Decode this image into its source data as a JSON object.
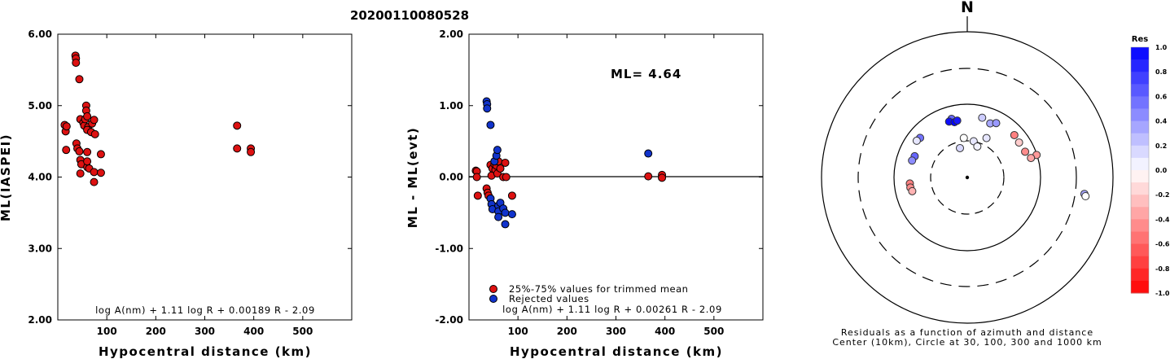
{
  "title": "20200110080528",
  "chart_data": [
    {
      "type": "scatter",
      "title": "",
      "xlabel": "Hypocentral distance (km)",
      "ylabel": "ML(IASPEI)",
      "xlim": [
        0,
        600
      ],
      "ylim": [
        2.0,
        6.0
      ],
      "x_ticks": [
        "100",
        "200",
        "300",
        "400",
        "500"
      ],
      "y_ticks": [
        "2.00",
        "3.00",
        "4.00",
        "5.00",
        "6.00"
      ],
      "formula": "log A(nm) + 1.11 log R + 0.00189 R - 2.09",
      "marker_color": "#dd1111",
      "points": [
        [
          14,
          4.73
        ],
        [
          16,
          4.64
        ],
        [
          18,
          4.71
        ],
        [
          17,
          4.38
        ],
        [
          36,
          5.7
        ],
        [
          37,
          5.66
        ],
        [
          37,
          5.6
        ],
        [
          38,
          4.47
        ],
        [
          40,
          4.4
        ],
        [
          44,
          5.37
        ],
        [
          46,
          4.81
        ],
        [
          44,
          4.36
        ],
        [
          46,
          4.24
        ],
        [
          46,
          4.05
        ],
        [
          48,
          4.18
        ],
        [
          52,
          4.76
        ],
        [
          54,
          4.72
        ],
        [
          56,
          4.81
        ],
        [
          58,
          5.0
        ],
        [
          58,
          4.93
        ],
        [
          60,
          4.85
        ],
        [
          62,
          4.7
        ],
        [
          60,
          4.66
        ],
        [
          60,
          4.35
        ],
        [
          60,
          4.14
        ],
        [
          60,
          4.22
        ],
        [
          64,
          4.12
        ],
        [
          68,
          4.63
        ],
        [
          70,
          4.75
        ],
        [
          74,
          4.8
        ],
        [
          76,
          4.6
        ],
        [
          74,
          4.07
        ],
        [
          74,
          3.93
        ],
        [
          88,
          4.32
        ],
        [
          88,
          4.06
        ],
        [
          366,
          4.72
        ],
        [
          366,
          4.4
        ],
        [
          394,
          4.4
        ],
        [
          394,
          4.35
        ]
      ]
    },
    {
      "type": "scatter",
      "title": "",
      "xlabel": "Hypocentral distance (km)",
      "ylabel": "ML - ML(evt)",
      "xlim": [
        0,
        600
      ],
      "ylim": [
        -2.0,
        2.0
      ],
      "x_ticks": [
        "100",
        "200",
        "300",
        "400",
        "500"
      ],
      "y_ticks": [
        "-2.00",
        "-1.00",
        "0.00",
        "1.00",
        "2.00"
      ],
      "ml_text": "ML= 4.64",
      "formula": "log A(nm) + 1.11 log R + 0.00261 R - 2.09",
      "legend": [
        {
          "label": "25%-75% values for trimmed mean",
          "color": "#dd1111"
        },
        {
          "label": "Rejected values",
          "color": "#1133cc"
        }
      ],
      "series": [
        {
          "name": "25%-75% values for trimmed mean",
          "color": "#dd1111",
          "points": [
            [
              14,
              0.09
            ],
            [
              16,
              0.08
            ],
            [
              16,
              0.0
            ],
            [
              18,
              -0.26
            ],
            [
              36,
              -0.16
            ],
            [
              38,
              -0.22
            ],
            [
              40,
              -0.26
            ],
            [
              44,
              0.17
            ],
            [
              46,
              0.02
            ],
            [
              48,
              0.12
            ],
            [
              52,
              0.18
            ],
            [
              54,
              0.1
            ],
            [
              56,
              0.16
            ],
            [
              58,
              0.05
            ],
            [
              60,
              0.22
            ],
            [
              64,
              0.12
            ],
            [
              70,
              0.0
            ],
            [
              74,
              0.2
            ],
            [
              76,
              0.0
            ],
            [
              88,
              -0.26
            ],
            [
              366,
              0.01
            ],
            [
              394,
              0.03
            ],
            [
              394,
              -0.01
            ]
          ]
        },
        {
          "name": "Rejected values",
          "color": "#1133cc",
          "points": [
            [
              36,
              1.06
            ],
            [
              37,
              1.02
            ],
            [
              37,
              0.96
            ],
            [
              44,
              0.73
            ],
            [
              44,
              -0.3
            ],
            [
              46,
              -0.38
            ],
            [
              48,
              -0.45
            ],
            [
              52,
              0.22
            ],
            [
              56,
              0.3
            ],
            [
              58,
              0.38
            ],
            [
              60,
              -0.4
            ],
            [
              60,
              -0.48
            ],
            [
              60,
              -0.56
            ],
            [
              64,
              -0.36
            ],
            [
              70,
              -0.44
            ],
            [
              74,
              -0.5
            ],
            [
              74,
              -0.66
            ],
            [
              88,
              -0.52
            ],
            [
              366,
              0.33
            ]
          ]
        }
      ]
    },
    {
      "type": "polar",
      "title": "",
      "north_label": "N",
      "caption_line1": "Residuals as a function of azimuth and distance",
      "caption_line2": "Center (10km), Circle at 30, 100, 300 and 1000 km",
      "colorbar_title": "Res",
      "colorbar_ticks": [
        "1.0",
        "0.8",
        "0.6",
        "0.4",
        "0.2",
        "0.0",
        "-0.2",
        "-0.4",
        "-0.6",
        "-0.8",
        "-1.0"
      ],
      "rings_km": [
        30,
        100,
        300,
        1000
      ],
      "stations": [
        {
          "az": 310,
          "dist": 70,
          "res": 0.55
        },
        {
          "az": 306,
          "dist": 72,
          "res": 0.1
        },
        {
          "az": 345,
          "dist": 68,
          "res": 0.6
        },
        {
          "az": 342,
          "dist": 64,
          "res": 0.95
        },
        {
          "az": 347,
          "dist": 60,
          "res": 1.0
        },
        {
          "az": 350,
          "dist": 62,
          "res": 0.9
        },
        {
          "az": 14,
          "dist": 70,
          "res": 0.2
        },
        {
          "az": 23,
          "dist": 64,
          "res": 0.35
        },
        {
          "az": 28,
          "dist": 70,
          "res": 0.4
        },
        {
          "az": 48,
          "dist": 74,
          "res": -0.5
        },
        {
          "az": 56,
          "dist": 72,
          "res": -0.2
        },
        {
          "az": 66,
          "dist": 74,
          "res": -0.45
        },
        {
          "az": 72,
          "dist": 100,
          "res": -0.4
        },
        {
          "az": 73,
          "dist": 82,
          "res": -0.35
        },
        {
          "az": 292,
          "dist": 60,
          "res": 0.6
        },
        {
          "az": 287,
          "dist": 62,
          "res": 0.45
        },
        {
          "az": 264,
          "dist": 62,
          "res": -0.5
        },
        {
          "az": 260,
          "dist": 62,
          "res": -0.45
        },
        {
          "az": 256,
          "dist": 60,
          "res": -0.3
        },
        {
          "az": 10,
          "dist": 32,
          "res": 0.1
        },
        {
          "az": 355,
          "dist": 35,
          "res": 0.0
        },
        {
          "az": 18,
          "dist": 28,
          "res": 0.05
        },
        {
          "az": 26,
          "dist": 40,
          "res": 0.1
        },
        {
          "az": 346,
          "dist": 26,
          "res": 0.15
        },
        {
          "az": 98,
          "dist": 420,
          "res": 0.35
        },
        {
          "az": 99,
          "dist": 440,
          "res": 0.0
        }
      ]
    }
  ]
}
